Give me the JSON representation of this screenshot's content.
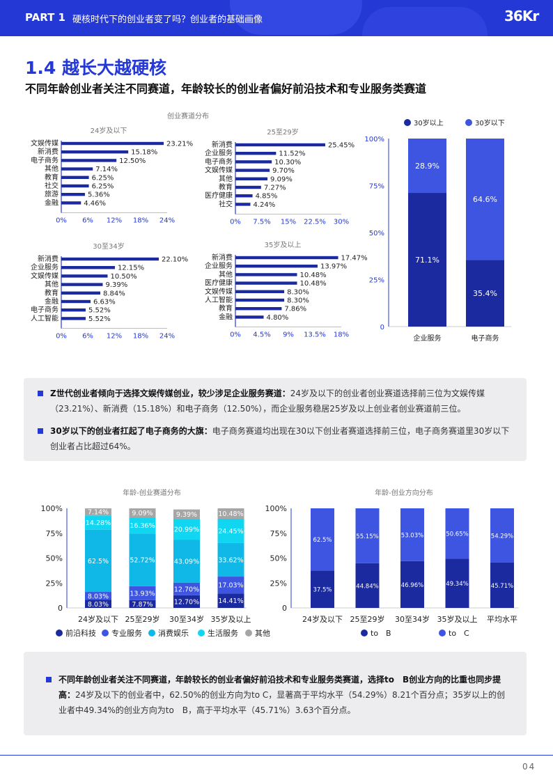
{
  "header": {
    "part": "PART 1",
    "title": "硬核时代下的创业者变了吗？创业者的基础画像",
    "logo": "36Kr"
  },
  "title": "1.4 越长大越硬核",
  "subtitle": "不同年龄创业者关注不同赛道，年龄较长的创业者偏好前沿技术和专业服务类赛道",
  "colors": {
    "navy": "#1b2a9e",
    "blue": "#3d55e0",
    "cyan": "#11d6f2",
    "gray": "#a6a6a6",
    "brand": "#2438d6"
  },
  "section1_title": "创业赛道分布",
  "chart_data": [
    {
      "type": "bar",
      "orientation": "horizontal",
      "title": "24岁及以下",
      "categories": [
        "文娱传媒",
        "新消费",
        "电子商务",
        "其他",
        "教育",
        "社交",
        "旅游",
        "金融"
      ],
      "values": [
        23.21,
        15.18,
        12.5,
        7.14,
        6.25,
        6.25,
        5.36,
        4.46
      ],
      "labels": [
        "23.21%",
        "15.18%",
        "12.50%",
        "7.14%",
        "6.25%",
        "6.25%",
        "5.36%",
        "4.46%"
      ],
      "xticks": [
        "0%",
        "6%",
        "12%",
        "18%",
        "24%"
      ],
      "xlim": [
        0,
        24
      ]
    },
    {
      "type": "bar",
      "orientation": "horizontal",
      "title": "25至29岁",
      "categories": [
        "新消费",
        "企业服务",
        "电子商务",
        "文娱传媒",
        "其他",
        "教育",
        "医疗健康",
        "社交"
      ],
      "values": [
        25.45,
        11.52,
        10.3,
        9.7,
        9.09,
        7.27,
        4.85,
        4.24
      ],
      "labels": [
        "25.45%",
        "11.52%",
        "10.30%",
        "9.70%",
        "9.09%",
        "7.27%",
        "4.85%",
        "4.24%"
      ],
      "xticks": [
        "0%",
        "7.5%",
        "15%",
        "22.5%",
        "30%"
      ],
      "xlim": [
        0,
        30
      ]
    },
    {
      "type": "bar",
      "orientation": "horizontal",
      "title": "30至34岁",
      "categories": [
        "新消费",
        "企业服务",
        "文娱传媒",
        "其他",
        "教育",
        "金融",
        "电子商务",
        "人工智能"
      ],
      "values": [
        22.1,
        12.15,
        10.5,
        9.39,
        8.84,
        6.63,
        5.52,
        5.52
      ],
      "labels": [
        "22.10%",
        "12.15%",
        "10.50%",
        "9.39%",
        "8.84%",
        "6.63%",
        "5.52%",
        "5.52%"
      ],
      "xticks": [
        "0%",
        "6%",
        "12%",
        "18%",
        "24%"
      ],
      "xlim": [
        0,
        24
      ]
    },
    {
      "type": "bar",
      "orientation": "horizontal",
      "title": "35岁及以上",
      "categories": [
        "新消费",
        "企业服务",
        "其他",
        "医疗健康",
        "文娱传媒",
        "人工智能",
        "教育",
        "金融"
      ],
      "values": [
        17.47,
        13.97,
        10.48,
        10.48,
        8.3,
        8.3,
        7.86,
        4.8
      ],
      "labels": [
        "17.47%",
        "13.97%",
        "10.48%",
        "10.48%",
        "8.30%",
        "8.30%",
        "7.86%",
        "4.80%"
      ],
      "xticks": [
        "0%",
        "4.5%",
        "9%",
        "13.5%",
        "18%"
      ],
      "xlim": [
        0,
        18
      ]
    },
    {
      "type": "bar",
      "stacked": true,
      "categories": [
        "企业服务",
        "电子商务"
      ],
      "series": [
        {
          "name": "30岁以上",
          "values": [
            71.1,
            35.4
          ],
          "labels": [
            "71.1%",
            "35.4%"
          ]
        },
        {
          "name": "30岁以下",
          "values": [
            28.9,
            64.6
          ],
          "labels": [
            "28.9%",
            "64.6%"
          ]
        }
      ],
      "yticks": [
        "0",
        "25%",
        "50%",
        "75%",
        "100%"
      ],
      "ylim": [
        0,
        100
      ]
    },
    {
      "type": "bar",
      "stacked": true,
      "title": "年龄-创业赛道分布",
      "categories": [
        "24岁及以下",
        "25至29岁",
        "30至34岁",
        "35岁及以上"
      ],
      "series": [
        {
          "name": "前沿科技",
          "values": [
            8.03,
            7.87,
            12.7,
            14.41
          ],
          "labels": [
            "8.03%",
            "7.87%",
            "12.70%",
            "14.41%"
          ]
        },
        {
          "name": "专业服务",
          "values": [
            8.03,
            13.93,
            12.7,
            17.03
          ],
          "labels": [
            "8.03%",
            "13.93%",
            "12.70%",
            "17.03%"
          ]
        },
        {
          "name": "消费娱乐",
          "values": [
            62.5,
            52.72,
            43.09,
            33.62
          ],
          "labels": [
            "62.5%",
            "52.72%",
            "43.09%",
            "33.62%"
          ]
        },
        {
          "name": "生活服务",
          "values": [
            14.28,
            16.36,
            20.99,
            24.45
          ],
          "labels": [
            "14.28%",
            "16.36%",
            "20.99%",
            "24.45%"
          ]
        },
        {
          "name": "其他",
          "values": [
            7.14,
            9.09,
            9.39,
            10.48
          ],
          "labels": [
            "7.14%",
            "9.09%",
            "9.39%",
            "10.48%"
          ]
        }
      ],
      "yticks": [
        "0",
        "25%",
        "50%",
        "75%",
        "100%"
      ],
      "ylim": [
        0,
        100
      ]
    },
    {
      "type": "bar",
      "stacked": true,
      "title": "年龄-创业方向分布",
      "categories": [
        "24岁及以下",
        "25至29岁",
        "30至34岁",
        "35岁及以上",
        "平均水平"
      ],
      "series": [
        {
          "name": "to　B",
          "values": [
            37.5,
            44.84,
            46.96,
            49.34,
            45.71
          ],
          "labels": [
            "37.5%",
            "44.84%",
            "46.96%",
            "49.34%",
            "45.71%"
          ]
        },
        {
          "name": "to　C",
          "values": [
            62.5,
            55.15,
            53.03,
            50.65,
            54.29
          ],
          "labels": [
            "62.5%",
            "55.15%",
            "53.03%",
            "50.65%",
            "54.29%"
          ]
        }
      ],
      "yticks": [
        "0",
        "25%",
        "50%",
        "75%",
        "100%"
      ],
      "ylim": [
        0,
        100
      ]
    }
  ],
  "box1": {
    "p1_bold": "Z世代创业者倾向于选择文娱传媒创业，较少涉足企业服务赛道：",
    "p1_text": "24岁及以下的创业者创业赛道选择前三位为文娱传媒（23.21%）、新消费（15.18%）和电子商务（12.50%），而企业服务稳居25岁及以上创业者创业赛道前三位。",
    "p2_bold": "30岁以下的创业者扛起了电子商务的大旗：",
    "p2_text": "电子商务赛道均出现在30以下创业者赛道选择前三位，电子商务赛道里30岁以下创业者占比超过64%。"
  },
  "box2": {
    "p1_bold": "不同年龄创业者关注不同赛道，年龄较长的创业者偏好前沿技术和专业服务类赛道，选择to　B创业方向的比重也同步提高：",
    "p1_text": "24岁及以下的创业者中，62.50%的创业方向为to C，显著高于平均水平（54.29%）8.21个百分点；35岁以上的创业者中49.34%的创业方向为to　B，高于平均水平（45.71%）3.63个百分点。"
  },
  "page_number": "04"
}
